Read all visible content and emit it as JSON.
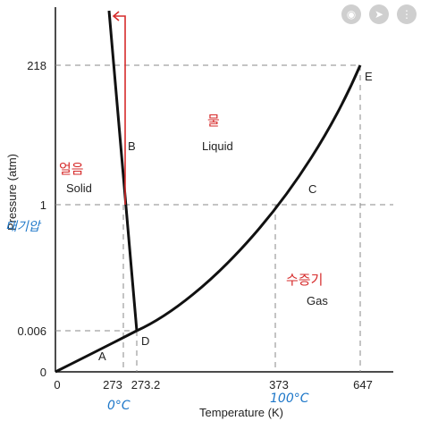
{
  "diagram": {
    "y_axis_title": "Pressure (atm)",
    "x_axis_title": "Temperature (K)",
    "y_ticks": [
      "218",
      "1",
      "0.006",
      "0"
    ],
    "x_ticks": [
      "0",
      "273",
      "273.2",
      "373",
      "647"
    ],
    "points": {
      "A": "A",
      "B": "B",
      "C": "C",
      "D": "D",
      "E": "E"
    },
    "regions": {
      "solid": "Solid",
      "liquid": "Liquid",
      "gas": "Gas"
    },
    "handwritten": {
      "solid_korean": "얼음",
      "liquid_korean": "물",
      "gas_korean": "수증기",
      "atmosphere_korean": "대기압",
      "zero_celsius": "0°C",
      "hundred_celsius": "100°C"
    },
    "colors": {
      "curve": "#111111",
      "dashed": "#888888",
      "red_annotation": "#d62b2b",
      "blue_annotation": "#1f78c9"
    }
  },
  "overlay_icons": [
    "focus-icon",
    "share-icon",
    "more-icon"
  ]
}
